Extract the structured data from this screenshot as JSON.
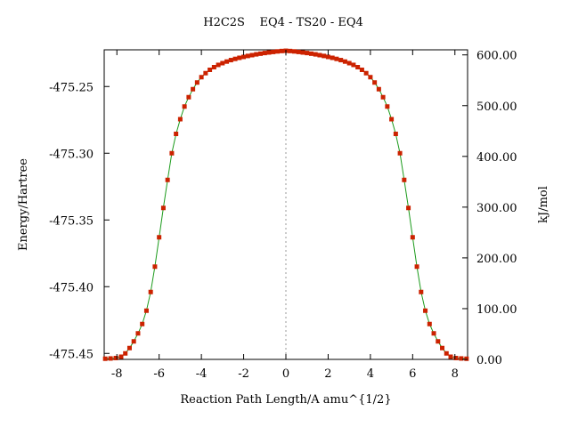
{
  "chart_data": {
    "type": "line",
    "title": "H2C2S    EQ4 - TS20 - EQ4",
    "xlabel": "Reaction Path Length/A amu^{1/2}",
    "ylabel": "Energy/Hartree",
    "y2label": "kJ/mol",
    "xlim": [
      -8.6,
      8.6
    ],
    "ylim": [
      -475.4545,
      -475.2225
    ],
    "y2lim": [
      0,
      610
    ],
    "x_ticks": [
      -8,
      -6,
      -4,
      -2,
      0,
      2,
      4,
      6,
      8
    ],
    "x_tick_labels": [
      "-8",
      "-6",
      "-4",
      "-2",
      "0",
      "2",
      "4",
      "6",
      "8"
    ],
    "y_ticks": [
      -475.45,
      -475.4,
      -475.35,
      -475.3,
      -475.25
    ],
    "y_tick_labels": [
      "-475.45",
      "-475.40",
      "-475.35",
      "-475.30",
      "-475.25"
    ],
    "y2_ticks": [
      0,
      100,
      200,
      300,
      400,
      500,
      600
    ],
    "y2_tick_labels": [
      "0.00",
      "100.00",
      "200.00",
      "300.00",
      "400.00",
      "500.00",
      "600.00"
    ],
    "ts_marker_x": 0,
    "grid": false,
    "series": [
      {
        "points": [
          [
            -8.55,
            -475.454
          ],
          [
            -8.3,
            -475.4538
          ],
          [
            -8.05,
            -475.4535
          ],
          [
            -7.8,
            -475.4525
          ],
          [
            -7.6,
            -475.45
          ],
          [
            -7.4,
            -475.446
          ],
          [
            -7.2,
            -475.441
          ],
          [
            -7.0,
            -475.435
          ],
          [
            -6.8,
            -475.428
          ],
          [
            -6.6,
            -475.418
          ],
          [
            -6.4,
            -475.404
          ],
          [
            -6.2,
            -475.385
          ],
          [
            -6.0,
            -475.363
          ],
          [
            -5.8,
            -475.341
          ],
          [
            -5.6,
            -475.32
          ],
          [
            -5.4,
            -475.3
          ],
          [
            -5.2,
            -475.2855
          ],
          [
            -5.0,
            -475.2745
          ],
          [
            -4.8,
            -475.265
          ],
          [
            -4.6,
            -475.258
          ],
          [
            -4.4,
            -475.252
          ],
          [
            -4.2,
            -475.247
          ],
          [
            -4.0,
            -475.243
          ],
          [
            -3.8,
            -475.24
          ],
          [
            -3.6,
            -475.2375
          ],
          [
            -3.4,
            -475.2355
          ],
          [
            -3.2,
            -475.2338
          ],
          [
            -3.0,
            -475.2325
          ],
          [
            -2.8,
            -475.2313
          ],
          [
            -2.6,
            -475.2302
          ],
          [
            -2.4,
            -475.2293
          ],
          [
            -2.2,
            -475.2285
          ],
          [
            -2.0,
            -475.2278
          ],
          [
            -1.8,
            -475.2271
          ],
          [
            -1.6,
            -475.2265
          ],
          [
            -1.4,
            -475.2259
          ],
          [
            -1.2,
            -475.2254
          ],
          [
            -1.0,
            -475.2249
          ],
          [
            -0.8,
            -475.2245
          ],
          [
            -0.6,
            -475.2241
          ],
          [
            -0.4,
            -475.2237
          ],
          [
            -0.2,
            -475.2234
          ],
          [
            0.0,
            -475.2232
          ],
          [
            0.2,
            -475.2234
          ],
          [
            0.4,
            -475.2237
          ],
          [
            0.6,
            -475.2241
          ],
          [
            0.8,
            -475.2245
          ],
          [
            1.0,
            -475.2249
          ],
          [
            1.2,
            -475.2254
          ],
          [
            1.4,
            -475.2259
          ],
          [
            1.6,
            -475.2265
          ],
          [
            1.8,
            -475.2271
          ],
          [
            2.0,
            -475.2278
          ],
          [
            2.2,
            -475.2285
          ],
          [
            2.4,
            -475.2293
          ],
          [
            2.6,
            -475.2302
          ],
          [
            2.8,
            -475.2313
          ],
          [
            3.0,
            -475.2325
          ],
          [
            3.2,
            -475.2338
          ],
          [
            3.4,
            -475.2355
          ],
          [
            3.6,
            -475.2375
          ],
          [
            3.8,
            -475.24
          ],
          [
            4.0,
            -475.243
          ],
          [
            4.2,
            -475.247
          ],
          [
            4.4,
            -475.252
          ],
          [
            4.6,
            -475.258
          ],
          [
            4.8,
            -475.265
          ],
          [
            5.0,
            -475.2745
          ],
          [
            5.2,
            -475.2855
          ],
          [
            5.4,
            -475.3
          ],
          [
            5.6,
            -475.32
          ],
          [
            5.8,
            -475.341
          ],
          [
            6.0,
            -475.363
          ],
          [
            6.2,
            -475.385
          ],
          [
            6.4,
            -475.404
          ],
          [
            6.6,
            -475.418
          ],
          [
            6.8,
            -475.428
          ],
          [
            7.0,
            -475.435
          ],
          [
            7.2,
            -475.441
          ],
          [
            7.4,
            -475.446
          ],
          [
            7.6,
            -475.45
          ],
          [
            7.8,
            -475.4525
          ],
          [
            8.05,
            -475.4535
          ],
          [
            8.3,
            -475.4538
          ],
          [
            8.55,
            -475.454
          ]
        ]
      }
    ],
    "colors": {
      "line": "#1a9a1a",
      "marker": "#cc2200",
      "ts_line": "#999999"
    }
  }
}
